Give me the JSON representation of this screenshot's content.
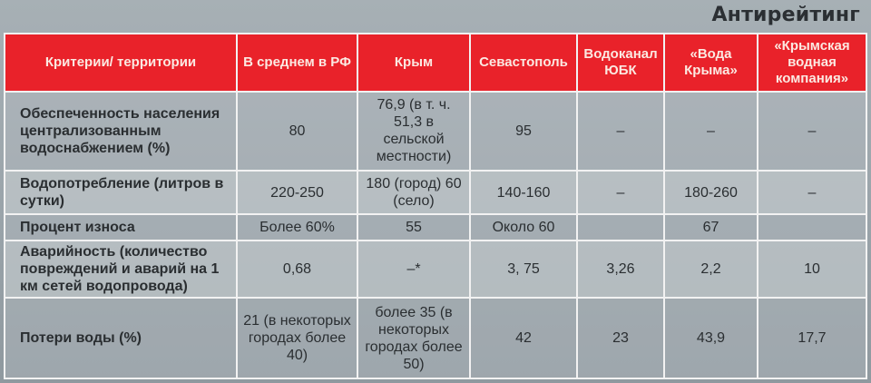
{
  "title": "Антирейтинг",
  "table": {
    "headers": [
      "Критерии/ территории",
      "В среднем в РФ",
      "Крым",
      "Севастополь",
      "Водоканал ЮБК",
      "«Вода Крыма»",
      "«Крымская водная компания»"
    ],
    "rows": [
      {
        "label": "Обеспеченность населения централизованным водоснабжением (%)",
        "cells": [
          "80",
          "76,9 (в т. ч. 51,3 в сельской местности)",
          "95",
          "–",
          "–",
          "–"
        ]
      },
      {
        "label": "Водопотребление (литров в сутки)",
        "cells": [
          "220-250",
          "180 (город) 60 (село)",
          "140-160",
          "–",
          "180-260",
          "–"
        ]
      },
      {
        "label": "Процент износа",
        "cells": [
          "Более 60%",
          "55",
          "Около 60",
          "",
          "67",
          ""
        ]
      },
      {
        "label": "Аварийность (количество повреждений и аварий на 1 км сетей водопровода)",
        "cells": [
          "0,68",
          "–*",
          "3, 75",
          "3,26",
          "2,2",
          "10"
        ]
      },
      {
        "label": "Потери воды (%)",
        "cells": [
          "21 (в некоторых городах более 40)",
          "более 35 (в некоторых городах более 50)",
          "42",
          "23",
          "43,9",
          "17,7"
        ]
      }
    ]
  },
  "colors": {
    "header_red": "#e9222a",
    "header_text": "#fbe9e2",
    "body_text": "#2a2e31",
    "grid_line": "#f2f2f2"
  }
}
